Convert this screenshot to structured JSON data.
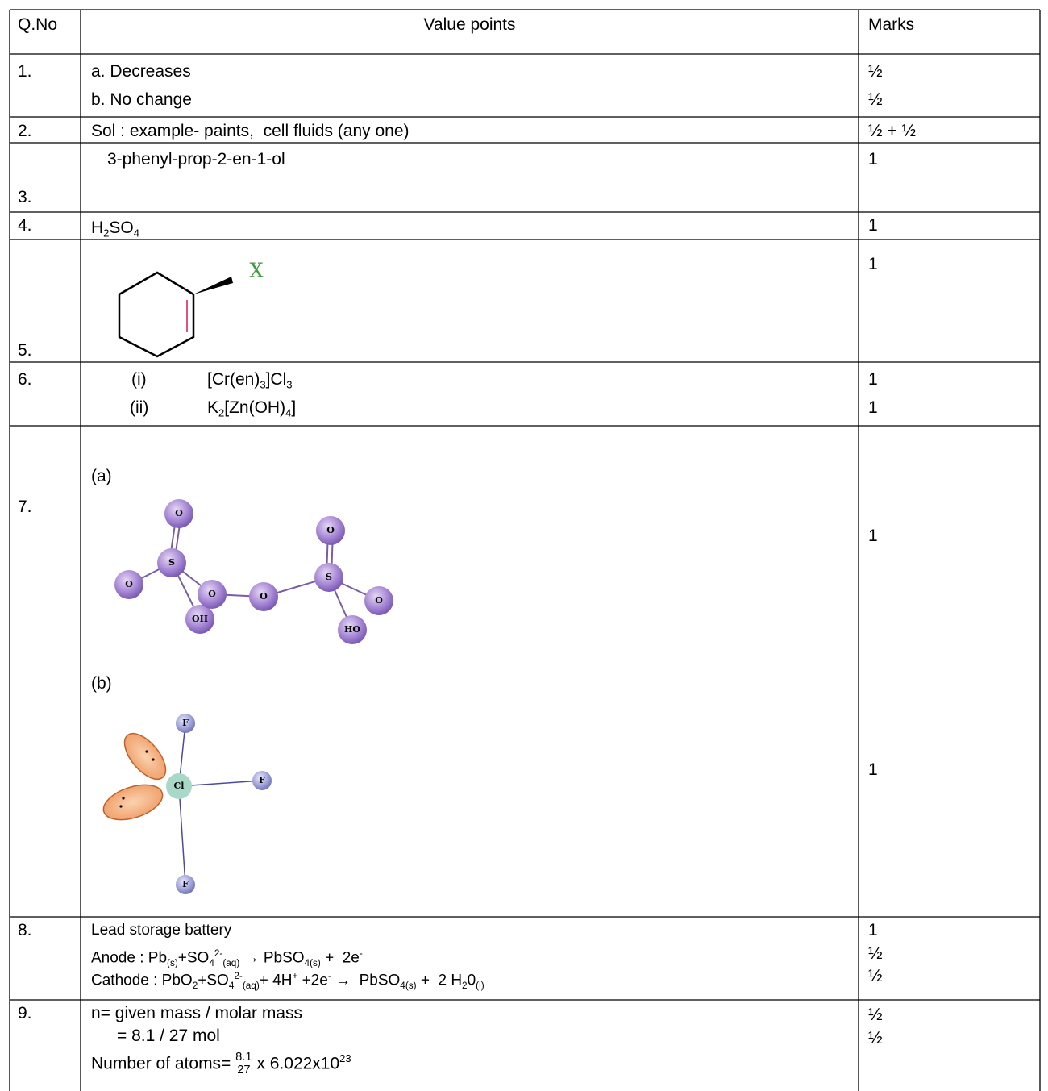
{
  "table": {
    "header": [
      "Q.No",
      "Value points",
      "Marks"
    ],
    "rows": [
      {
        "qno": "1.",
        "lines": [
          [
            {
              "t": "a. Decreases"
            }
          ],
          [
            {
              "t": "b. No change"
            }
          ]
        ],
        "marks": [
          "½",
          "½"
        ]
      },
      {
        "qno": "2.",
        "lines": [
          [
            {
              "t": "Sol : example- paints,  cell fluids (any one)"
            }
          ]
        ],
        "marks": [
          "½ + ½"
        ]
      },
      {
        "qno": "3.",
        "lines": [
          [
            {
              "t": "3-phenyl-prop-2-en-1-ol"
            }
          ]
        ],
        "marks": [
          "1"
        ]
      },
      {
        "qno": "4.",
        "lines": [
          [
            {
              "t": "H"
            },
            {
              "sub": "2"
            },
            {
              "t": "SO"
            },
            {
              "sub": "4"
            }
          ]
        ],
        "marks": [
          "1"
        ]
      },
      {
        "qno": "5.",
        "lines": [],
        "marks": [
          "1"
        ],
        "figure": {
          "labels": [
            "X"
          ]
        }
      },
      {
        "qno": "6.",
        "lines": [
          [
            {
              "t": "(i)"
            },
            {
              "t": "[Cr(en)"
            },
            {
              "sub": "3"
            },
            {
              "t": "]Cl"
            },
            {
              "sub": "3"
            }
          ],
          [
            {
              "t": "(ii)"
            },
            {
              "t": "K"
            },
            {
              "sub": "2"
            },
            {
              "t": "[Zn(OH)"
            },
            {
              "sub": "4"
            },
            {
              "t": "]"
            }
          ]
        ],
        "marks": [
          "1",
          "1"
        ]
      },
      {
        "qno": "7.",
        "lines": [
          [
            {
              "t": "(a)"
            }
          ],
          [
            {
              "t": "(b)"
            }
          ]
        ],
        "marks": [
          "1",
          "1"
        ],
        "figure": {
          "labels": [
            "O",
            "S",
            "O",
            "OH",
            "O",
            "O",
            "O",
            "S",
            "O",
            "HO",
            "F",
            "F",
            "F",
            "Cl"
          ]
        }
      },
      {
        "qno": "8.",
        "lines": [
          [
            {
              "t": "Lead storage battery"
            }
          ],
          [
            {
              "t": "Anode : Pb"
            },
            {
              "sub": "(s)"
            },
            {
              "t": "+SO"
            },
            {
              "sub": "4"
            },
            {
              "sup": "2-"
            },
            {
              "sub": "(aq)"
            },
            {
              "t": " → PbSO"
            },
            {
              "sub": "4(s)"
            },
            {
              "t": " +  2e"
            },
            {
              "sup": "-"
            }
          ],
          [
            {
              "t": "Cathode : PbO"
            },
            {
              "sub": "2"
            },
            {
              "t": "+SO"
            },
            {
              "sub": "4"
            },
            {
              "sup": "2-"
            },
            {
              "sub": "(aq)"
            },
            {
              "t": "+ 4H"
            },
            {
              "sup": "+"
            },
            {
              "t": " +2e"
            },
            {
              "sup": "-"
            },
            {
              "t": " →  PbSO"
            },
            {
              "sub": "4(s)"
            },
            {
              "t": " +  2 H"
            },
            {
              "sub": "2"
            },
            {
              "t": "0"
            },
            {
              "sub": "(l)"
            }
          ]
        ],
        "marks": [
          "1",
          "½",
          "½"
        ]
      },
      {
        "qno": "9.",
        "lines": [
          [
            {
              "t": "n= given mass / molar mass"
            }
          ],
          [
            {
              "t": "= 8.1 / 27 mol"
            }
          ],
          [
            {
              "t": "Number of atoms= "
            },
            {
              "num": "8.1",
              "den": "27"
            },
            {
              "t": " x 6.022x10"
            },
            {
              "sup": "23"
            }
          ]
        ],
        "marks": [
          "½",
          "½"
        ]
      }
    ]
  }
}
